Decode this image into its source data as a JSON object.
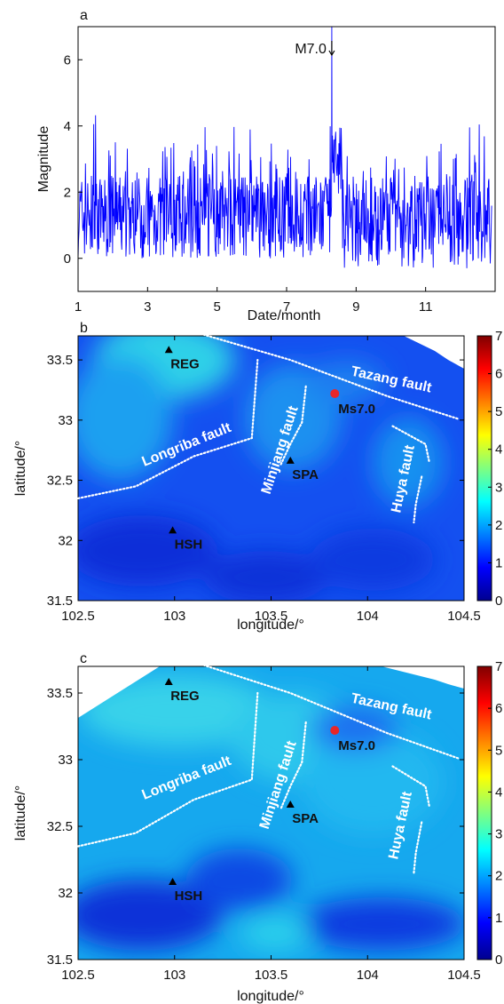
{
  "chart_data": [
    {
      "panel_label": "a",
      "type": "line",
      "xlabel": "Date/month",
      "ylabel": "Magnitude",
      "xlim": [
        1,
        13
      ],
      "ylim": [
        -1,
        7
      ],
      "xticks": [
        1,
        3,
        5,
        7,
        9,
        11
      ],
      "yticks": [
        0,
        2,
        4,
        6
      ],
      "line_color": "#0000ff",
      "mainshock": {
        "x": 8.3,
        "y": 7.0,
        "label": "M7.0"
      },
      "series_summary": {
        "before_mainshock": {
          "x_range": [
            1,
            8.3
          ],
          "baseline_range": [
            0,
            2.5
          ],
          "typical_peak": 3.5,
          "max_peak": 4.4
        },
        "after_mainshock": {
          "x_range": [
            8.3,
            12.9
          ],
          "baseline_range": [
            -0.3,
            2.5
          ],
          "typical_peak": 3.2,
          "max_peak": 4.1
        }
      }
    },
    {
      "panel_label": "b",
      "type": "heatmap",
      "xlabel": "longitude/°",
      "ylabel": "latitude/°",
      "xlim": [
        102.5,
        104.5
      ],
      "ylim": [
        31.5,
        33.7
      ],
      "xticks": [
        102.5,
        103,
        103.5,
        104,
        104.5
      ],
      "yticks": [
        31.5,
        32,
        32.5,
        33,
        33.5
      ],
      "colorbar": {
        "min": 0,
        "max": 7,
        "ticks": [
          0,
          1,
          2,
          3,
          4,
          5,
          6,
          7
        ],
        "colormap": "jet"
      },
      "stations": [
        {
          "name": "REG",
          "lon": 102.97,
          "lat": 33.58
        },
        {
          "name": "SPA",
          "lon": 103.6,
          "lat": 32.66
        },
        {
          "name": "HSH",
          "lon": 102.99,
          "lat": 32.08
        }
      ],
      "epicenter": {
        "name": "Ms7.0",
        "lon": 103.83,
        "lat": 33.22,
        "color": "#e8262a"
      },
      "faults": [
        {
          "name": "Tazang fault",
          "path": [
            [
              103.15,
              33.71
            ],
            [
              103.6,
              33.5
            ],
            [
              104.1,
              33.2
            ],
            [
              104.47,
              33.01
            ]
          ]
        },
        {
          "name": "Minjiang fault",
          "path": [
            [
              103.68,
              33.28
            ],
            [
              103.66,
              32.98
            ],
            [
              103.6,
              32.8
            ],
            [
              103.55,
              32.63
            ]
          ]
        },
        {
          "name": "Longriba fault",
          "path": [
            [
              102.5,
              32.35
            ],
            [
              102.8,
              32.45
            ],
            [
              103.1,
              32.7
            ],
            [
              103.4,
              32.85
            ],
            [
              103.43,
              33.5
            ]
          ]
        },
        {
          "name": "Huya fault",
          "path": [
            [
              104.13,
              32.95
            ],
            [
              104.3,
              32.8
            ],
            [
              104.32,
              32.65
            ]
          ]
        },
        {
          "name": "Huya fault south strand",
          "path": [
            [
              104.28,
              32.53
            ],
            [
              104.25,
              32.3
            ],
            [
              104.24,
              32.15
            ]
          ]
        }
      ],
      "value_field_summary": {
        "typical": 1.2,
        "max": 2.2,
        "high_area": "around REG, northwest"
      }
    },
    {
      "panel_label": "c",
      "type": "heatmap",
      "xlabel": "longitude/°",
      "ylabel": "latitude/°",
      "xlim": [
        102.5,
        104.5
      ],
      "ylim": [
        31.5,
        33.7
      ],
      "xticks": [
        102.5,
        103,
        103.5,
        104,
        104.5
      ],
      "yticks": [
        31.5,
        32,
        32.5,
        33,
        33.5
      ],
      "colorbar": {
        "min": 0,
        "max": 7,
        "ticks": [
          0,
          1,
          2,
          3,
          4,
          5,
          6,
          7
        ],
        "colormap": "jet"
      },
      "stations": [
        {
          "name": "REG",
          "lon": 102.97,
          "lat": 33.58
        },
        {
          "name": "SPA",
          "lon": 103.6,
          "lat": 32.66
        },
        {
          "name": "HSH",
          "lon": 102.99,
          "lat": 32.08
        }
      ],
      "epicenter": {
        "name": "Ms7.0",
        "lon": 103.83,
        "lat": 33.22,
        "color": "#e8262a"
      },
      "faults": [
        {
          "name": "Tazang fault",
          "path": [
            [
              103.15,
              33.71
            ],
            [
              103.6,
              33.5
            ],
            [
              104.1,
              33.2
            ],
            [
              104.47,
              33.01
            ]
          ]
        },
        {
          "name": "Minjiang fault",
          "path": [
            [
              103.68,
              33.28
            ],
            [
              103.66,
              32.98
            ],
            [
              103.6,
              32.8
            ],
            [
              103.55,
              32.63
            ]
          ]
        },
        {
          "name": "Longriba fault",
          "path": [
            [
              102.5,
              32.35
            ],
            [
              102.8,
              32.45
            ],
            [
              103.1,
              32.7
            ],
            [
              103.4,
              32.85
            ],
            [
              103.43,
              33.5
            ]
          ]
        },
        {
          "name": "Huya fault",
          "path": [
            [
              104.13,
              32.95
            ],
            [
              104.3,
              32.8
            ],
            [
              104.32,
              32.65
            ]
          ]
        },
        {
          "name": "Huya fault south strand",
          "path": [
            [
              104.28,
              32.53
            ],
            [
              104.25,
              32.3
            ],
            [
              104.24,
              32.15
            ]
          ]
        }
      ],
      "value_field_summary": {
        "typical": 1.8,
        "max": 2.6,
        "high_area": "broad, north and central"
      }
    }
  ]
}
